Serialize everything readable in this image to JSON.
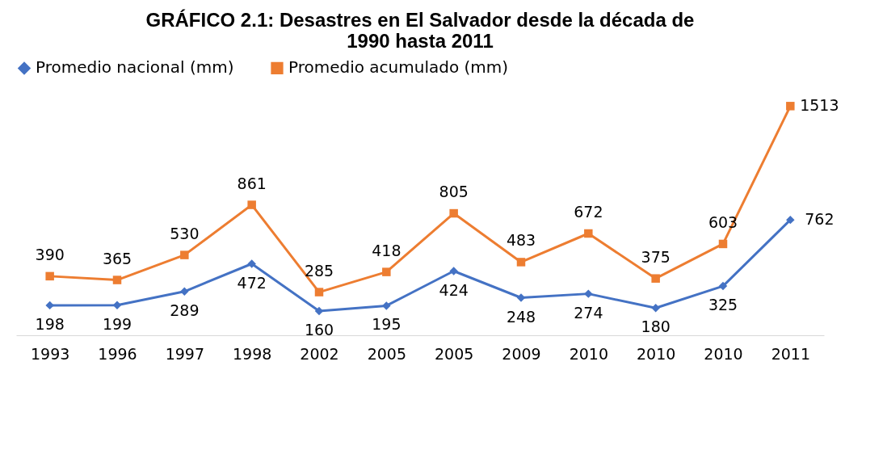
{
  "chart_data": {
    "type": "line",
    "title": "GRÁFICO 2.1: Desastres en El Salvador desde la década de\n1990 hasta 2011",
    "categories": [
      "1993",
      "1996",
      "1997",
      "1998",
      "2002",
      "2005",
      "2005",
      "2009",
      "2010",
      "2010",
      "2010",
      "2011"
    ],
    "series": [
      {
        "name": "Promedio nacional (mm)",
        "color": "#4472c4",
        "marker": "diamond",
        "values": [
          198,
          199,
          289,
          472,
          160,
          195,
          424,
          248,
          274,
          180,
          325,
          762
        ]
      },
      {
        "name": "Promedio acumulado (mm)",
        "color": "#ed7d31",
        "marker": "square",
        "values": [
          390,
          365,
          530,
          861,
          285,
          418,
          805,
          483,
          672,
          375,
          603,
          1513
        ]
      }
    ],
    "data_labels": true,
    "legend": "top",
    "grid": false,
    "tick_labels": "x"
  }
}
